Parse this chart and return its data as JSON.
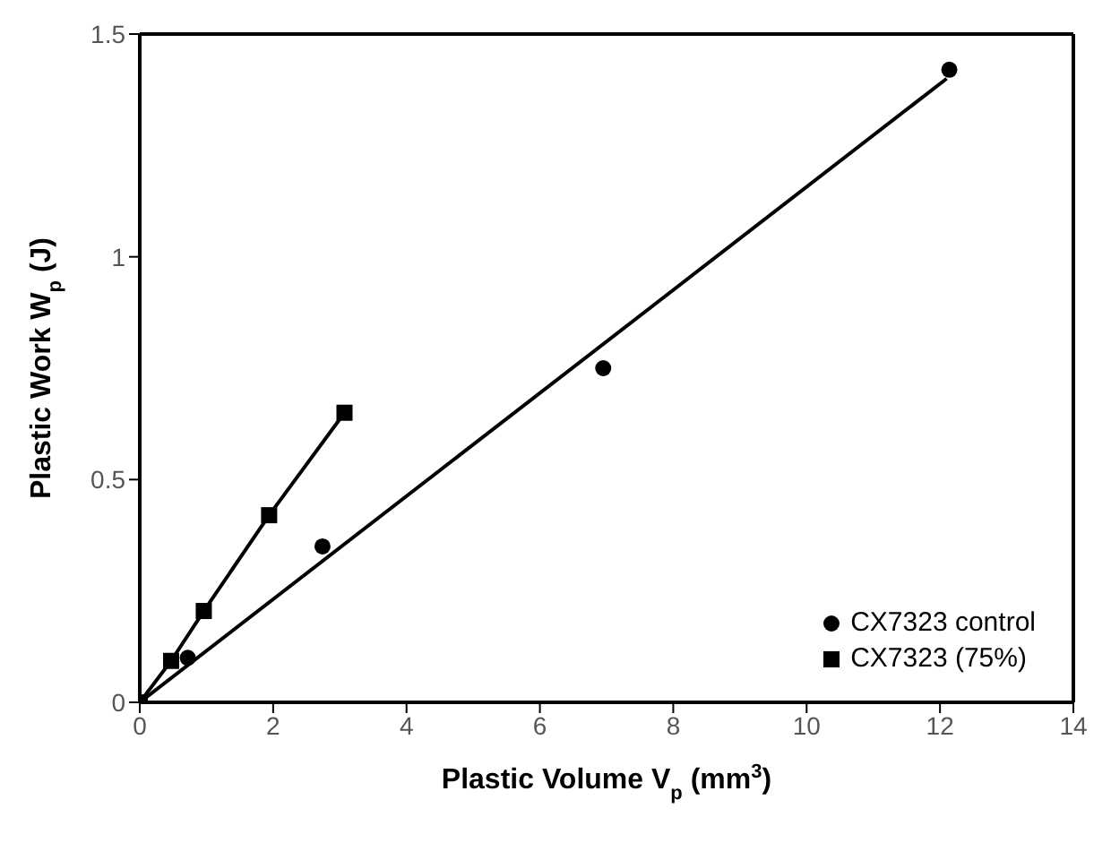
{
  "chart_data": {
    "type": "scatter",
    "xlabel": "Plastic Volume V$_{p}$ (mm$^{3}$)",
    "ylabel": "Plastic Work W$_{p}$ (J)",
    "xlim": [
      0,
      14
    ],
    "xticks": [
      0,
      2,
      4,
      6,
      8,
      10,
      12,
      14
    ],
    "ylim": [
      0,
      1.5
    ],
    "yticks": [
      0,
      0.5,
      1,
      1.5
    ],
    "grid": false,
    "legend": "bottom right",
    "series": [
      {
        "name": "CX7323 control",
        "marker": "circle",
        "color": "#000000",
        "x": [
          0.72,
          2.74,
          6.95,
          12.14
        ],
        "values": [
          0.1,
          0.35,
          0.75,
          1.42
        ]
      },
      {
        "name": "CX7323 (75%)",
        "type": "line",
        "marker": "square",
        "color": "#000000",
        "x": [
          0,
          0.47,
          0.96,
          1.94,
          3.07
        ],
        "values": [
          0,
          0.093,
          0.205,
          0.42,
          0.65
        ]
      },
      {
        "type": "line",
        "marker": "none",
        "color": "#000000",
        "x": [
          0,
          12.1
        ],
        "values": [
          0,
          1.4
        ]
      }
    ]
  }
}
